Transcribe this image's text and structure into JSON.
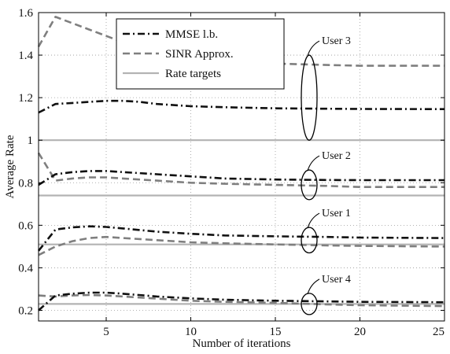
{
  "chart_data": {
    "type": "line",
    "xlabel": "Number of iterations",
    "ylabel": "Average Rate",
    "xlim": [
      1,
      25
    ],
    "ylim": [
      0.15,
      1.6
    ],
    "xticks": [
      5,
      10,
      15,
      20,
      25
    ],
    "yticks": [
      0.2,
      0.4,
      0.6,
      0.8,
      1,
      1.2,
      1.4,
      1.6
    ],
    "grid": true,
    "legend_placement": "top-left",
    "legend": [
      {
        "label": "MMSE l.b.",
        "style": "dashdot",
        "color": "#111111"
      },
      {
        "label": "SINR Approx.",
        "style": "dashed",
        "color": "#7f7f7f"
      },
      {
        "label": "Rate targets",
        "style": "solid",
        "color": "#b3b3b3"
      }
    ],
    "series": [
      {
        "group": "User 3",
        "kind": "MMSE l.b.",
        "style": "dashdot",
        "color": "#111111",
        "x": [
          1,
          2,
          3,
          4,
          5,
          6,
          7,
          8,
          10,
          12,
          15,
          18,
          20,
          25
        ],
        "y": [
          1.13,
          1.17,
          1.175,
          1.18,
          1.185,
          1.185,
          1.18,
          1.17,
          1.16,
          1.155,
          1.15,
          1.148,
          1.147,
          1.146
        ]
      },
      {
        "group": "User 3",
        "kind": "SINR Approx.",
        "style": "dashed",
        "color": "#7f7f7f",
        "x": [
          1,
          2,
          3,
          4,
          5,
          6,
          8,
          10,
          15,
          20,
          25
        ],
        "y": [
          1.44,
          1.58,
          1.55,
          1.52,
          1.49,
          1.46,
          1.41,
          1.39,
          1.36,
          1.35,
          1.35
        ]
      },
      {
        "group": "User 3",
        "kind": "Rate targets",
        "style": "solid",
        "color": "#b3b3b3",
        "x": [
          1,
          25
        ],
        "y": [
          1.0,
          1.0
        ]
      },
      {
        "group": "User 2",
        "kind": "MMSE l.b.",
        "style": "dashdot",
        "color": "#111111",
        "x": [
          1,
          2,
          3,
          4,
          5,
          6,
          8,
          10,
          12,
          15,
          18,
          20,
          25
        ],
        "y": [
          0.79,
          0.84,
          0.85,
          0.855,
          0.855,
          0.85,
          0.84,
          0.83,
          0.82,
          0.815,
          0.813,
          0.812,
          0.812
        ]
      },
      {
        "group": "User 2",
        "kind": "SINR Approx.",
        "style": "dashed",
        "color": "#7f7f7f",
        "x": [
          1,
          2,
          3,
          4,
          5,
          6,
          8,
          10,
          12,
          15,
          18,
          20,
          25
        ],
        "y": [
          0.94,
          0.81,
          0.82,
          0.825,
          0.825,
          0.82,
          0.81,
          0.8,
          0.795,
          0.79,
          0.785,
          0.78,
          0.78
        ]
      },
      {
        "group": "User 2",
        "kind": "Rate targets",
        "style": "solid",
        "color": "#b3b3b3",
        "x": [
          1,
          25
        ],
        "y": [
          0.74,
          0.74
        ]
      },
      {
        "group": "User 1",
        "kind": "MMSE l.b.",
        "style": "dashdot",
        "color": "#111111",
        "x": [
          1,
          2,
          3,
          4,
          5,
          6,
          8,
          10,
          12,
          15,
          18,
          20,
          25
        ],
        "y": [
          0.48,
          0.58,
          0.59,
          0.595,
          0.592,
          0.585,
          0.57,
          0.56,
          0.552,
          0.548,
          0.545,
          0.542,
          0.54
        ]
      },
      {
        "group": "User 1",
        "kind": "SINR Approx.",
        "style": "dashed",
        "color": "#7f7f7f",
        "x": [
          1,
          2,
          3,
          4,
          5,
          6,
          8,
          10,
          12,
          15,
          18,
          20,
          25
        ],
        "y": [
          0.46,
          0.5,
          0.525,
          0.54,
          0.545,
          0.54,
          0.53,
          0.52,
          0.515,
          0.51,
          0.505,
          0.503,
          0.5
        ]
      },
      {
        "group": "User 1",
        "kind": "Rate targets",
        "style": "solid",
        "color": "#b3b3b3",
        "x": [
          1,
          25
        ],
        "y": [
          0.51,
          0.51
        ]
      },
      {
        "group": "User 4",
        "kind": "MMSE l.b.",
        "style": "dashdot",
        "color": "#111111",
        "x": [
          1,
          2,
          3,
          4,
          5,
          6,
          8,
          10,
          12,
          15,
          18,
          20,
          25
        ],
        "y": [
          0.2,
          0.27,
          0.278,
          0.283,
          0.283,
          0.278,
          0.265,
          0.256,
          0.25,
          0.245,
          0.242,
          0.24,
          0.238
        ]
      },
      {
        "group": "User 4",
        "kind": "SINR Approx.",
        "style": "dashed",
        "color": "#7f7f7f",
        "x": [
          1,
          2,
          3,
          4,
          5,
          6,
          8,
          10,
          12,
          15,
          18,
          20,
          25
        ],
        "y": [
          0.27,
          0.265,
          0.27,
          0.272,
          0.27,
          0.265,
          0.255,
          0.245,
          0.24,
          0.235,
          0.228,
          0.224,
          0.22
        ]
      },
      {
        "group": "User 4",
        "kind": "Rate targets",
        "style": "solid",
        "color": "#b3b3b3",
        "x": [
          1,
          25
        ],
        "y": [
          0.23,
          0.23
        ]
      }
    ],
    "annotations": [
      {
        "label": "User 3",
        "x": 17,
        "y": 1.2,
        "ry": 0.2
      },
      {
        "label": "User 2",
        "x": 17,
        "y": 0.79,
        "ry": 0.07
      },
      {
        "label": "User 1",
        "x": 17,
        "y": 0.53,
        "ry": 0.06
      },
      {
        "label": "User 4",
        "x": 17,
        "y": 0.23,
        "ry": 0.05
      }
    ]
  }
}
